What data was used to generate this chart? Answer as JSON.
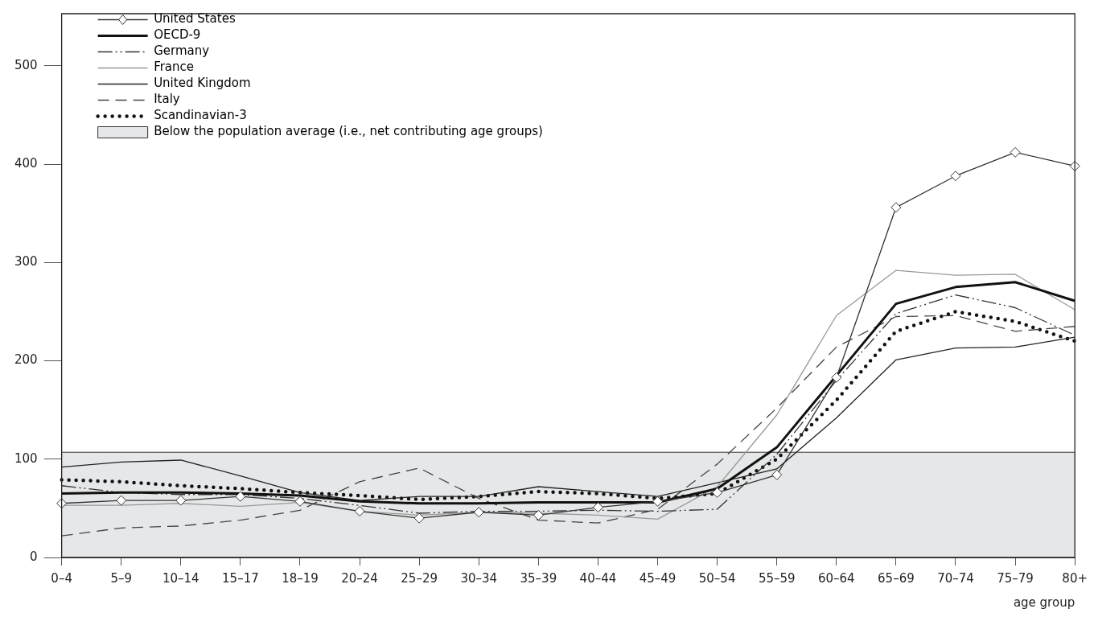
{
  "chart_data": {
    "type": "line",
    "xlabel": "age group",
    "categories": [
      "0–4",
      "5–9",
      "10–14",
      "15–17",
      "18–19",
      "20–24",
      "25–29",
      "30–34",
      "35–39",
      "40–44",
      "45–49",
      "50–54",
      "55–59",
      "60–64",
      "65–69",
      "70–74",
      "75–79",
      "80+"
    ],
    "ylim": [
      0,
      553
    ],
    "yticks": [
      0,
      100,
      200,
      300,
      400,
      500
    ],
    "grid": false,
    "legend": "top left",
    "marker": "none",
    "series": [
      {
        "name": "United States",
        "color": "#333333",
        "marker": "diamond",
        "line_style": "solid",
        "values": [
          55,
          58,
          58,
          62,
          57,
          47,
          40,
          46,
          43,
          51,
          57,
          66,
          84,
          183,
          356,
          388,
          412,
          398
        ]
      },
      {
        "name": "OECD-9",
        "color": "#111111",
        "line_style": "solid",
        "values": [
          65,
          66,
          66,
          65,
          63,
          57,
          55,
          55,
          56,
          56,
          56,
          70,
          112,
          185,
          258,
          275,
          280,
          261
        ]
      },
      {
        "name": "Germany",
        "color": "#333333",
        "line_style": "dashdot",
        "values": [
          73,
          66,
          64,
          64,
          60,
          53,
          45,
          47,
          47,
          48,
          47,
          49,
          105,
          180,
          248,
          267,
          254,
          226
        ]
      },
      {
        "name": "France",
        "color": "#999999",
        "line_style": "solid",
        "values": [
          53,
          53,
          55,
          52,
          56,
          47,
          43,
          46,
          45,
          43,
          39,
          72,
          145,
          246,
          292,
          287,
          288,
          252
        ]
      },
      {
        "name": "United Kingdom",
        "color": "#222222",
        "line_style": "solid",
        "values": [
          92,
          97,
          99,
          83,
          66,
          58,
          62,
          62,
          72,
          67,
          62,
          76,
          90,
          142,
          201,
          213,
          214,
          224
        ]
      },
      {
        "name": "Italy",
        "color": "#444444",
        "line_style": "dashed",
        "values": [
          22,
          30,
          32,
          38,
          48,
          77,
          91,
          60,
          38,
          35,
          49,
          95,
          152,
          214,
          245,
          246,
          230,
          235
        ]
      },
      {
        "name": "Scandinavian-3",
        "color": "#111111",
        "line_style": "dotted",
        "values": [
          79,
          77,
          73,
          70,
          66,
          63,
          59,
          62,
          67,
          65,
          60,
          65,
          100,
          160,
          230,
          250,
          240,
          220
        ]
      }
    ],
    "ref_lines": [
      {
        "axis": "y",
        "value": 107,
        "color": "#333333"
      }
    ],
    "bands": [
      {
        "axis": "y",
        "from": 0,
        "to": 107,
        "label": "Below the population average (i.e., net contributing age groups)",
        "color": "#e6e7e8"
      }
    ]
  }
}
